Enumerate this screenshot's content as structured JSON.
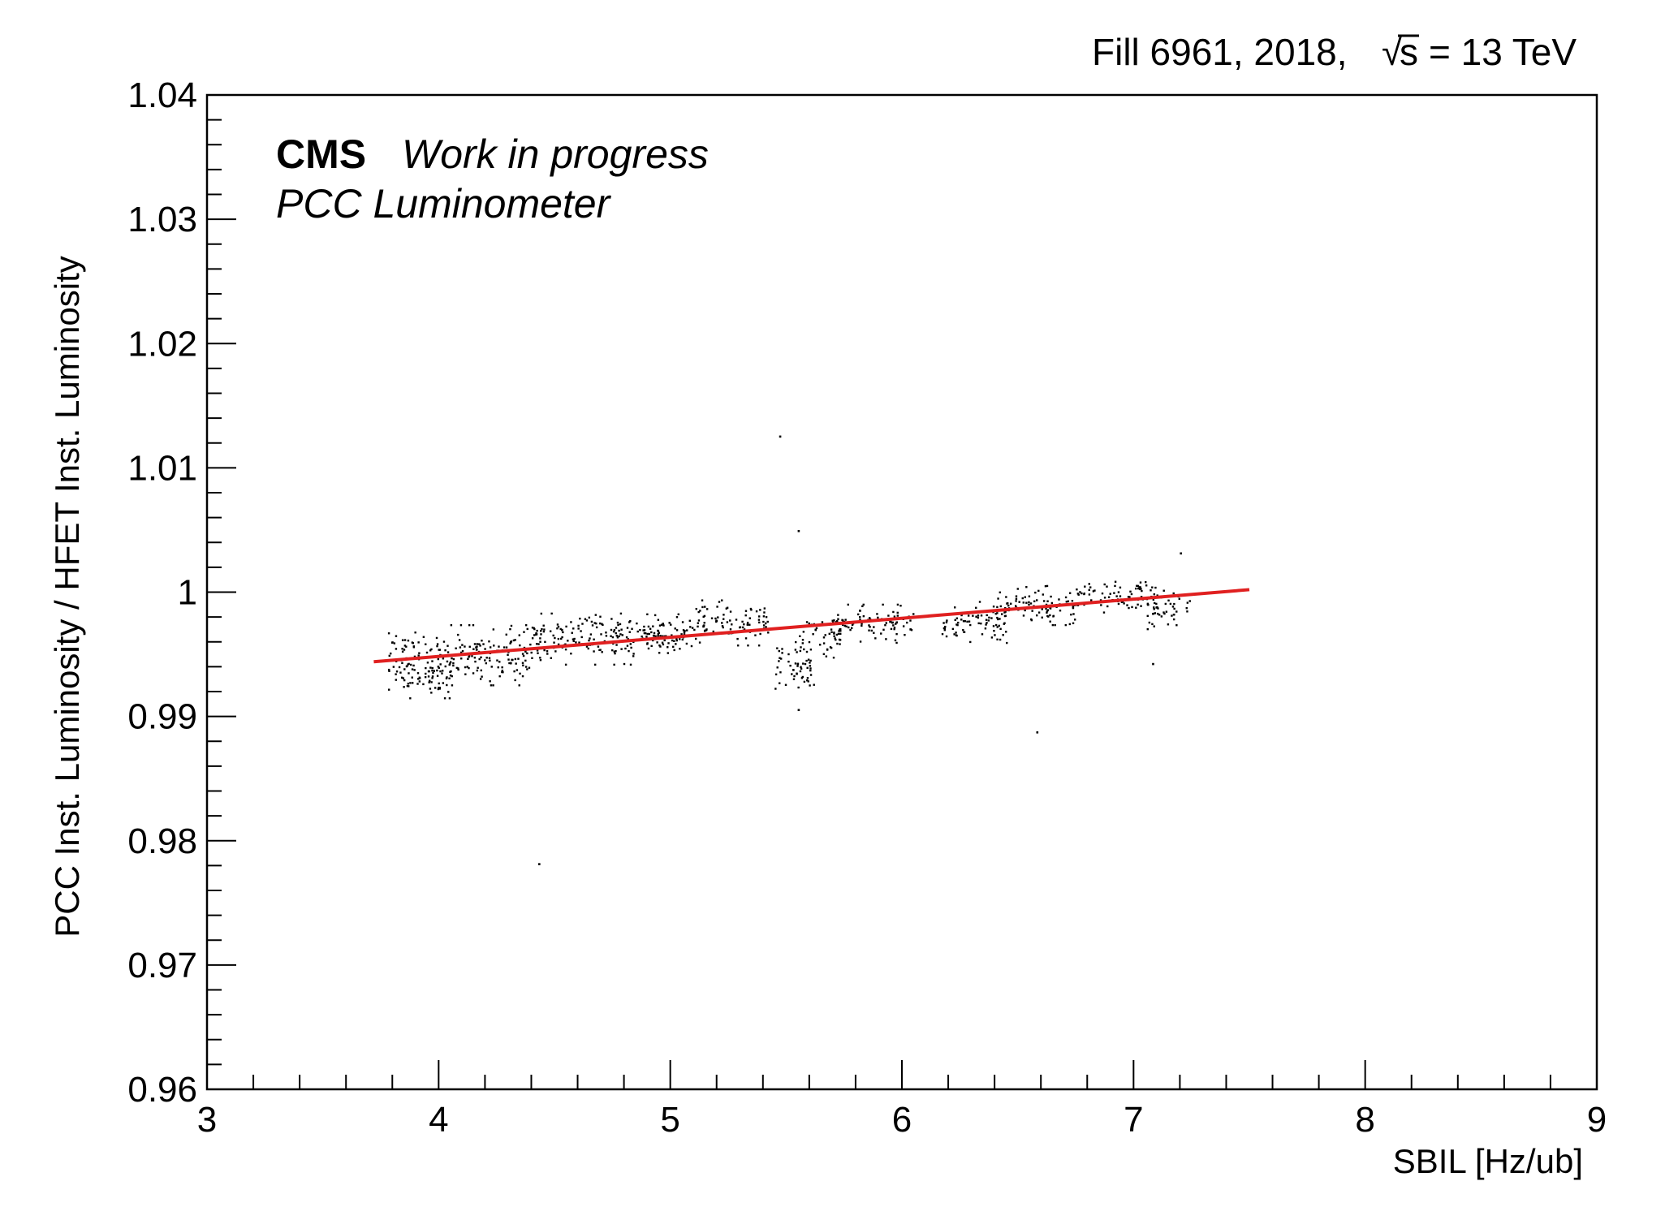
{
  "header": {
    "fill_text": "Fill 6961, 2018,",
    "sqrt_symbol": "√",
    "s_symbol": "s",
    "energy_text": "= 13 TeV"
  },
  "labels": {
    "cms": "CMS",
    "status": "Work in progress",
    "detector": "PCC Luminometer"
  },
  "chart_data": {
    "type": "scatter",
    "xlabel": "SBIL [Hz/ub]",
    "ylabel": "PCC Inst. Luminosity / HFET Inst. Luminosity",
    "xlim": [
      3,
      9
    ],
    "ylim": [
      0.96,
      1.04
    ],
    "x_ticks": [
      "3",
      "4",
      "5",
      "6",
      "7",
      "8",
      "9"
    ],
    "y_ticks": [
      "0.96",
      "0.97",
      "0.98",
      "0.99",
      "1",
      "1.01",
      "1.02",
      "1.03",
      "1.04"
    ],
    "grid": false,
    "point_color": "#000000",
    "fit_color": "#e02020",
    "fit_line": {
      "x": [
        3.72,
        7.5
      ],
      "y": [
        0.9944,
        1.0002
      ]
    },
    "clusters": [
      {
        "x_range": [
          3.78,
          4.05
        ],
        "y_center": 0.9942,
        "y_spread": 0.0022,
        "count": 140
      },
      {
        "x_range": [
          4.05,
          4.4
        ],
        "y_center": 0.995,
        "y_spread": 0.002,
        "count": 130
      },
      {
        "x_range": [
          4.4,
          4.85
        ],
        "y_center": 0.9963,
        "y_spread": 0.0017,
        "count": 150
      },
      {
        "x_range": [
          4.85,
          5.1
        ],
        "y_center": 0.9966,
        "y_spread": 0.0014,
        "count": 90
      },
      {
        "x_range": [
          5.1,
          5.42
        ],
        "y_center": 0.9976,
        "y_spread": 0.0015,
        "count": 90
      },
      {
        "x_range": [
          5.45,
          5.62
        ],
        "y_center": 0.994,
        "y_spread": 0.0017,
        "count": 55
      },
      {
        "x_range": [
          5.55,
          5.75
        ],
        "y_center": 0.9965,
        "y_spread": 0.0014,
        "count": 45
      },
      {
        "x_range": [
          5.7,
          6.05
        ],
        "y_center": 0.9975,
        "y_spread": 0.0013,
        "count": 90
      },
      {
        "x_range": [
          6.15,
          6.45
        ],
        "y_center": 0.9976,
        "y_spread": 0.0014,
        "count": 80
      },
      {
        "x_range": [
          6.4,
          6.75
        ],
        "y_center": 0.999,
        "y_spread": 0.0013,
        "count": 90
      },
      {
        "x_range": [
          6.75,
          7.1
        ],
        "y_center": 0.9997,
        "y_spread": 0.0012,
        "count": 80
      },
      {
        "x_range": [
          7.05,
          7.25
        ],
        "y_center": 0.9985,
        "y_spread": 0.0014,
        "count": 45
      }
    ],
    "outliers": [
      {
        "x": 5.47,
        "y": 1.0126
      },
      {
        "x": 5.55,
        "y": 1.005
      },
      {
        "x": 4.43,
        "y": 0.9782
      },
      {
        "x": 6.58,
        "y": 0.9888
      },
      {
        "x": 5.55,
        "y": 0.9906
      },
      {
        "x": 7.08,
        "y": 0.9943
      },
      {
        "x": 7.2,
        "y": 1.0032
      }
    ]
  }
}
